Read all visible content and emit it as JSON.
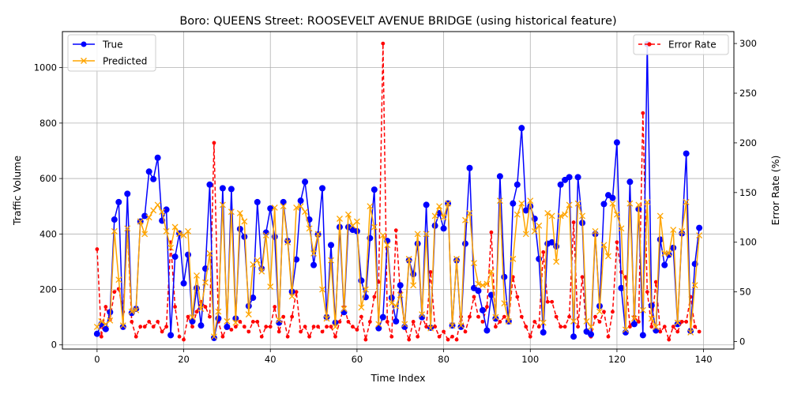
{
  "chart_data": {
    "type": "line",
    "title": "Boro: QUEENS Street: ROOSEVELT AVENUE BRIDGE (using historical feature)",
    "xlabel": "Time Index",
    "ylabel": "Traffic Volume",
    "y2label": "Error Rate (%)",
    "xlim": [
      -8,
      147
    ],
    "ylim": [
      -15,
      1130
    ],
    "y2lim": [
      -7.5,
      312
    ],
    "xticks": [
      0,
      20,
      40,
      60,
      80,
      100,
      120,
      140
    ],
    "yticks": [
      0,
      200,
      400,
      600,
      800,
      1000
    ],
    "y2ticks": [
      0,
      50,
      100,
      150,
      200,
      250,
      300
    ],
    "grid": true,
    "legend_left": {
      "placement": "upper-left",
      "entries": [
        "True",
        "Predicted"
      ]
    },
    "legend_right": {
      "placement": "upper-right",
      "entries": [
        "Error Rate"
      ]
    },
    "colors": {
      "true": "#0000ff",
      "predicted": "#ffa500",
      "error": "#ff0000"
    },
    "series": [
      {
        "name": "True",
        "axis": "left",
        "values": [
          40,
          75,
          57,
          118,
          452,
          515,
          65,
          545,
          115,
          130,
          445,
          465,
          625,
          598,
          675,
          448,
          488,
          35,
          318,
          402,
          222,
          325,
          85,
          205,
          70,
          275,
          578,
          25,
          95,
          565,
          65,
          562,
          95,
          418,
          390,
          140,
          170,
          515,
          275,
          405,
          492,
          390,
          80,
          515,
          375,
          192,
          308,
          520,
          588,
          452,
          288,
          398,
          565,
          100,
          360,
          80,
          425,
          118,
          425,
          415,
          410,
          232,
          172,
          385,
          560,
          60,
          100,
          375,
          170,
          85,
          215,
          65,
          305,
          255,
          365,
          100,
          505,
          62,
          430,
          475,
          420,
          510,
          70,
          305,
          65,
          365,
          638,
          205,
          195,
          125,
          52,
          180,
          95,
          608,
          245,
          85,
          510,
          578,
          782,
          485,
          500,
          455,
          310,
          45,
          365,
          370,
          355,
          578,
          595,
          605,
          30,
          605,
          440,
          48,
          38,
          400,
          140,
          508,
          540,
          530,
          730,
          205,
          45,
          588,
          75,
          490,
          35,
          1085,
          142,
          52,
          380,
          288,
          325,
          350,
          75,
          402,
          690,
          50,
          292,
          422
        ]
      },
      {
        "name": "Predicted",
        "axis": "left",
        "values": [
          65,
          85,
          75,
          88,
          410,
          235,
          70,
          420,
          120,
          125,
          445,
          400,
          460,
          485,
          505,
          480,
          410,
          350,
          425,
          400,
          395,
          410,
          100,
          250,
          130,
          225,
          330,
          30,
          120,
          505,
          85,
          480,
          80,
          475,
          445,
          110,
          290,
          305,
          265,
          395,
          210,
          495,
          90,
          500,
          370,
          175,
          495,
          500,
          480,
          420,
          330,
          400,
          200,
          95,
          305,
          65,
          455,
          130,
          470,
          430,
          445,
          135,
          200,
          500,
          425,
          75,
          395,
          360,
          150,
          140,
          180,
          75,
          310,
          215,
          400,
          110,
          400,
          60,
          465,
          500,
          460,
          510,
          70,
          310,
          70,
          450,
          475,
          295,
          220,
          215,
          220,
          265,
          100,
          520,
          150,
          85,
          310,
          470,
          510,
          400,
          520,
          410,
          430,
          80,
          475,
          465,
          300,
          465,
          470,
          505,
          85,
          510,
          465,
          85,
          65,
          410,
          120,
          360,
          320,
          510,
          470,
          420,
          55,
          510,
          95,
          505,
          125,
          515,
          95,
          65,
          465,
          330,
          330,
          415,
          80,
          410,
          515,
          45,
          215,
          395
        ]
      },
      {
        "name": "Error Rate",
        "axis": "right",
        "values": [
          93,
          5,
          35,
          22,
          50,
          53,
          30,
          112,
          20,
          5,
          15,
          15,
          20,
          15,
          20,
          10,
          15,
          100,
          35,
          5,
          2,
          25,
          15,
          30,
          40,
          35,
          25,
          200,
          20,
          5,
          15,
          12,
          15,
          20,
          15,
          10,
          20,
          20,
          5,
          15,
          15,
          35,
          10,
          25,
          5,
          25,
          50,
          10,
          15,
          5,
          15,
          15,
          10,
          15,
          15,
          5,
          20,
          35,
          20,
          15,
          12,
          25,
          2,
          20,
          45,
          60,
          300,
          20,
          5,
          112,
          50,
          15,
          2,
          20,
          5,
          25,
          15,
          70,
          15,
          5,
          10,
          2,
          5,
          2,
          25,
          10,
          25,
          45,
          25,
          20,
          35,
          110,
          15,
          20,
          25,
          20,
          65,
          45,
          25,
          15,
          5,
          20,
          15,
          90,
          40,
          40,
          25,
          15,
          15,
          25,
          120,
          15,
          65,
          10,
          5,
          25,
          20,
          30,
          5,
          30,
          100,
          70,
          65,
          15,
          25,
          20,
          230,
          50,
          15,
          60,
          10,
          15,
          2,
          15,
          10,
          20,
          20,
          45,
          15,
          10
        ]
      }
    ]
  }
}
